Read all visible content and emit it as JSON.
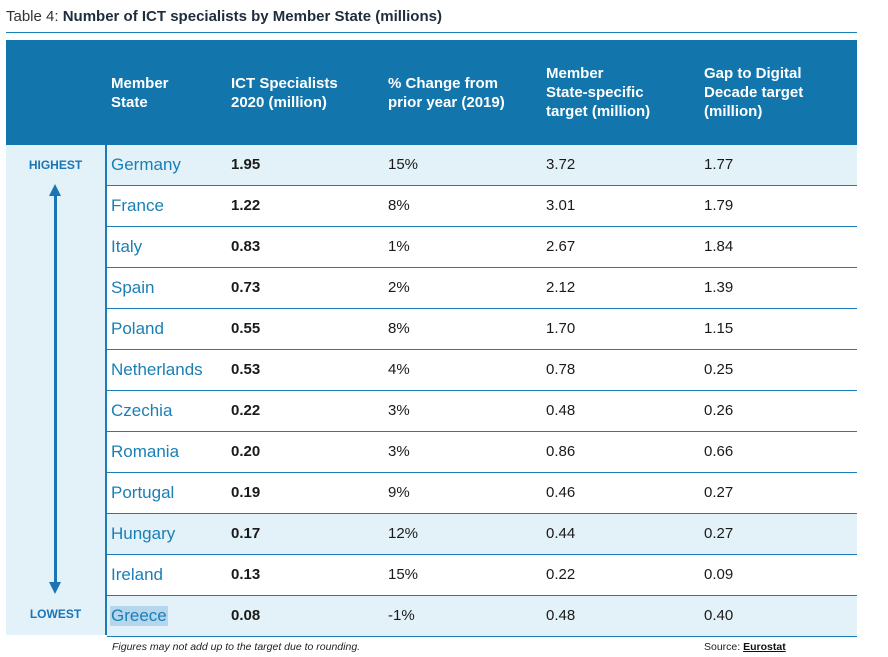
{
  "caption": {
    "prefix": "Table 4: ",
    "title": "Number of ICT specialists by Member State (millions)"
  },
  "headers": {
    "state": [
      "Member",
      "State"
    ],
    "ict": [
      "ICT Specialists",
      "2020 (million)"
    ],
    "change": [
      "% Change from",
      "prior year (2019)"
    ],
    "target": [
      "Member",
      "State-specific",
      "target (million)"
    ],
    "gap": [
      "Gap to Digital",
      "Decade target",
      "(million)"
    ]
  },
  "rank": {
    "high": "HIGHEST",
    "low": "LOWEST"
  },
  "rows": [
    {
      "state": "Germany",
      "ict": "1.95",
      "change": "15%",
      "target": "3.72",
      "gap": "1.77"
    },
    {
      "state": "France",
      "ict": "1.22",
      "change": "8%",
      "target": "3.01",
      "gap": "1.79"
    },
    {
      "state": "Italy",
      "ict": "0.83",
      "change": "1%",
      "target": "2.67",
      "gap": "1.84"
    },
    {
      "state": "Spain",
      "ict": "0.73",
      "change": "2%",
      "target": "2.12",
      "gap": "1.39"
    },
    {
      "state": "Poland",
      "ict": "0.55",
      "change": "8%",
      "target": "1.70",
      "gap": "1.15"
    },
    {
      "state": "Netherlands",
      "ict": "0.53",
      "change": "4%",
      "target": "0.78",
      "gap": "0.25"
    },
    {
      "state": "Czechia",
      "ict": "0.22",
      "change": "3%",
      "target": "0.48",
      "gap": "0.26"
    },
    {
      "state": "Romania",
      "ict": "0.20",
      "change": "3%",
      "target": "0.86",
      "gap": "0.66"
    },
    {
      "state": "Portugal",
      "ict": "0.19",
      "change": "9%",
      "target": "0.46",
      "gap": "0.27"
    },
    {
      "state": "Hungary",
      "ict": "0.17",
      "change": "12%",
      "target": "0.44",
      "gap": "0.27"
    },
    {
      "state": "Ireland",
      "ict": "0.13",
      "change": "15%",
      "target": "0.22",
      "gap": "0.09"
    },
    {
      "state": "Greece",
      "ict": "0.08",
      "change": "-1%",
      "target": "0.48",
      "gap": "0.40"
    }
  ],
  "footnote": "Figures may not add up to the target due to rounding.",
  "source": {
    "label": "Source: ",
    "link": "Eurostat"
  },
  "colors": {
    "header": "#1276ad",
    "shade": "#e3f1f8",
    "accent": "#1a7fb5"
  }
}
